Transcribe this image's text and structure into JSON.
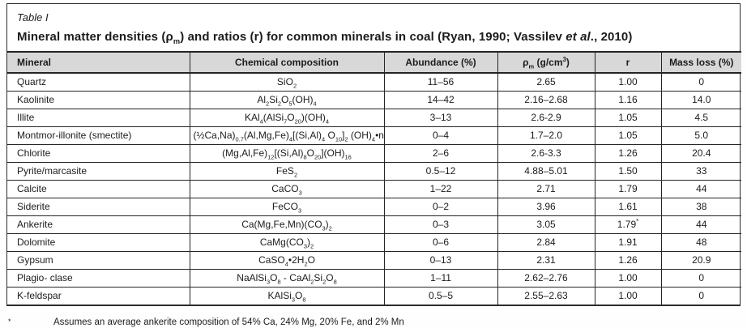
{
  "colors": {
    "header_background": "#d8d8d8",
    "border": "#2b2b2b",
    "text": "#1c1c1c",
    "page_background": "#fefefe"
  },
  "table": {
    "label": "Table I",
    "title_pre": "Mineral matter densities (ρ~m~) and ratios (r) for common minerals in coal (Ryan, 1990; Vassilev ",
    "title_italic": "et al",
    "title_post": "., 2010)",
    "columns": [
      "Mineral",
      "Chemical composition",
      "Abundance (%)",
      "ρ~m~ (g/cm^3^)",
      "r",
      "Mass loss (%)"
    ],
    "rows": [
      [
        "Quartz",
        "SiO~2~",
        "11–56",
        "2.65",
        "1.00",
        "0"
      ],
      [
        "Kaolinite",
        "Al~2~Si~2~O~5~(OH)~4~",
        "14–42",
        "2.16–2.68",
        "1.16",
        "14.0"
      ],
      [
        "Illite",
        "KAl~4~(AlSi~7~O~20~)(OH)~4~",
        "3–13",
        "2.6-2.9",
        "1.05",
        "4.5"
      ],
      [
        "Montmor-illonite (smectite)",
        "(½Ca,Na)~0.7~(Al,Mg,Fe)~4~[(Si,Al)~4~ O~10~]~2~ (OH)~4~•nH~2~O",
        "0–4",
        "1.7–2.0",
        "1.05",
        "5.0"
      ],
      [
        "Chlorite",
        "(Mg,Al,Fe)~12~[(Si,Al)~8~O~20~](OH)~16~",
        "2–6",
        "2.6-3.3",
        "1.26",
        "20.4"
      ],
      [
        "Pyrite/marcasite",
        "FeS~2~",
        "0.5–12",
        "4.88–5.01",
        "1.50",
        "33"
      ],
      [
        "Calcite",
        "CaCO~3~",
        "1–22",
        "2.71",
        "1.79",
        "44"
      ],
      [
        "Siderite",
        "FeCO~3~",
        "0–2",
        "3.96",
        "1.61",
        "38"
      ],
      [
        "Ankerite",
        "Ca(Mg,Fe,Mn)(CO~3~)~2~",
        "0–3",
        "3.05",
        "1.79^*^",
        "44"
      ],
      [
        "Dolomite",
        "CaMg(CO~3~)~2~",
        "0–6",
        "2.84",
        "1.91",
        "48"
      ],
      [
        "Gypsum",
        "CaSO~4~•2H~2~O",
        "0–13",
        "2.31",
        "1.26",
        "20.9"
      ],
      [
        "Plagio- clase",
        "NaAlSi~3~O~8~ - CaAl~2~Si~2~O~8~",
        "1–11",
        "2.62–2.76",
        "1.00",
        "0"
      ],
      [
        "K-feldspar",
        "KAlSi~3~O~8~",
        "0.5–5",
        "2.55–2.63",
        "1.00",
        "0"
      ]
    ],
    "footnote_marker": "*",
    "footnote_text": "Assumes an average ankerite composition of 54% Ca, 24% Mg, 20% Fe, and 2% Mn"
  }
}
